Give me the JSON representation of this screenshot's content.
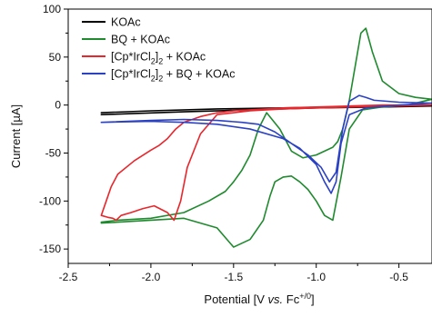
{
  "chart_data": {
    "type": "line",
    "xlabel": "Potential [V vs. Fc+/0]",
    "xlabel_parts": [
      {
        "text": "Potential [V ",
        "style": "normal"
      },
      {
        "text": "vs.",
        "style": "italic"
      },
      {
        "text": " Fc",
        "style": "normal"
      },
      {
        "text": "+/0",
        "style": "sup"
      },
      {
        "text": "]",
        "style": "normal"
      }
    ],
    "ylabel": "Current [µA]",
    "xlim": [
      -2.5,
      -0.3
    ],
    "ylim": [
      -165,
      100
    ],
    "x_ticks": [
      -2.5,
      -2.0,
      -1.5,
      -1.0,
      -0.5
    ],
    "x_tick_labels": [
      "-2.5",
      "-2.0",
      "-1.5",
      "-1.0",
      "-0.5"
    ],
    "y_ticks": [
      100,
      50,
      0,
      -50,
      -100,
      -150
    ],
    "y_tick_labels": [
      "100",
      "50",
      "0",
      "-50",
      "-100",
      "-150"
    ],
    "grid": false,
    "legend_position": "top-left",
    "series": [
      {
        "name": "KOAc",
        "legend_parts": [
          {
            "text": "KOAc",
            "style": "normal"
          }
        ],
        "color": "#000000",
        "x": [
          -2.3,
          -2.0,
          -1.6,
          -1.2,
          -0.9,
          -0.6,
          -0.3,
          -0.6,
          -1.0,
          -1.4,
          -1.8,
          -2.3
        ],
        "y": [
          -8,
          -6,
          -4,
          -3,
          -2,
          -1,
          -1,
          -2,
          -3,
          -5,
          -7,
          -10
        ]
      },
      {
        "name": "BQ + KOAc",
        "legend_parts": [
          {
            "text": "BQ + KOAc",
            "style": "normal"
          }
        ],
        "color": "#1f8a2e",
        "x": [
          -2.3,
          -2.2,
          -2.0,
          -1.8,
          -1.65,
          -1.55,
          -1.5,
          -1.45,
          -1.4,
          -1.35,
          -1.3,
          -1.22,
          -1.15,
          -1.08,
          -1.0,
          -0.95,
          -0.9,
          -0.87,
          -0.84,
          -0.8,
          -0.76,
          -0.73,
          -0.7,
          -0.66,
          -0.6,
          -0.5,
          -0.4,
          -0.3,
          -0.45,
          -0.6,
          -0.72,
          -0.8,
          -0.85,
          -0.9,
          -0.95,
          -1.0,
          -1.05,
          -1.1,
          -1.15,
          -1.2,
          -1.25,
          -1.28,
          -1.32,
          -1.4,
          -1.5,
          -1.6,
          -1.8,
          -2.0,
          -2.3
        ],
        "y": [
          -122,
          -120,
          -118,
          -112,
          -100,
          -90,
          -80,
          -68,
          -52,
          -25,
          -8,
          -25,
          -48,
          -55,
          -52,
          -48,
          -44,
          -38,
          -25,
          5,
          45,
          75,
          80,
          55,
          25,
          12,
          8,
          6,
          0,
          -2,
          -5,
          -25,
          -75,
          -120,
          -115,
          -100,
          -88,
          -80,
          -74,
          -75,
          -80,
          -95,
          -120,
          -140,
          -148,
          -128,
          -118,
          -120,
          -123
        ]
      },
      {
        "name": "[Cp*IrCl2]2 + KOAc",
        "legend_parts": [
          {
            "text": "[Cp*IrCl",
            "style": "normal"
          },
          {
            "text": "2",
            "style": "sub"
          },
          {
            "text": "]",
            "style": "normal"
          },
          {
            "text": "2",
            "style": "sub"
          },
          {
            "text": " + KOAc",
            "style": "normal"
          }
        ],
        "color": "#e8262c",
        "x": [
          -2.3,
          -2.27,
          -2.24,
          -2.2,
          -2.1,
          -2.0,
          -1.95,
          -1.9,
          -1.85,
          -1.8,
          -1.7,
          -1.6,
          -1.5,
          -1.4,
          -1.3,
          -1.2,
          -1.0,
          -0.8,
          -0.6,
          -0.4,
          -0.3,
          -0.5,
          -0.8,
          -1.0,
          -1.2,
          -1.4,
          -1.6,
          -1.7,
          -1.78,
          -1.82,
          -1.86,
          -1.9,
          -1.98,
          -2.05,
          -2.12,
          -2.18,
          -2.21,
          -2.23,
          -2.26,
          -2.3
        ],
        "y": [
          -115,
          -100,
          -85,
          -72,
          -58,
          -47,
          -42,
          -35,
          -25,
          -18,
          -12,
          -8,
          -6,
          -5,
          -4,
          -3,
          -2,
          -1,
          0,
          0,
          0,
          -1,
          -2,
          -3,
          -4,
          -6,
          -10,
          -30,
          -65,
          -100,
          -120,
          -112,
          -105,
          -108,
          -112,
          -115,
          -120,
          -118,
          -117,
          -115
        ]
      },
      {
        "name": "[Cp*IrCl2]2 + BQ + KOAc",
        "legend_parts": [
          {
            "text": "[Cp*IrCl",
            "style": "normal"
          },
          {
            "text": "2",
            "style": "sub"
          },
          {
            "text": "]",
            "style": "normal"
          },
          {
            "text": "2",
            "style": "sub"
          },
          {
            "text": " + BQ + KOAc",
            "style": "normal"
          }
        ],
        "color": "#2b41c4",
        "x": [
          -2.3,
          -2.0,
          -1.8,
          -1.6,
          -1.45,
          -1.35,
          -1.25,
          -1.15,
          -1.05,
          -0.97,
          -0.92,
          -0.88,
          -0.84,
          -0.8,
          -0.74,
          -0.7,
          -0.65,
          -0.5,
          -0.3,
          -0.5,
          -0.7,
          -0.8,
          -0.85,
          -0.88,
          -0.91,
          -0.95,
          -1.0,
          -1.1,
          -1.2,
          -1.4,
          -1.6,
          -1.8,
          -2.0,
          -2.3
        ],
        "y": [
          -18,
          -16,
          -15,
          -16,
          -18,
          -20,
          -28,
          -40,
          -52,
          -65,
          -80,
          -70,
          -25,
          4,
          10,
          8,
          5,
          3,
          2,
          0,
          -3,
          -10,
          -40,
          -80,
          -92,
          -80,
          -62,
          -45,
          -35,
          -25,
          -20,
          -18,
          -17,
          -18
        ]
      }
    ]
  }
}
